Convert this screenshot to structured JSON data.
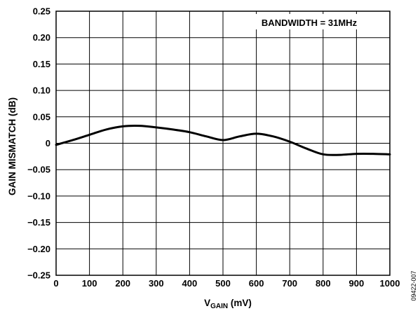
{
  "chart_data": {
    "type": "line",
    "title": "",
    "xlabel_main": "V",
    "xlabel_sub": "GAIN",
    "xlabel_unit": " (mV)",
    "ylabel": "GAIN MISMATCH (dB)",
    "annotation": "BANDWIDTH = 31MHz",
    "figure_id": "09422-007",
    "xlim": [
      0,
      1000
    ],
    "ylim": [
      -0.25,
      0.25
    ],
    "grid": true,
    "x_ticks": [
      0,
      100,
      200,
      300,
      400,
      500,
      600,
      700,
      800,
      900,
      1000
    ],
    "x_tick_labels": [
      "0",
      "100",
      "200",
      "300",
      "400",
      "500",
      "600",
      "700",
      "800",
      "900",
      "1000"
    ],
    "y_ticks": [
      0.25,
      0.2,
      0.15,
      0.1,
      0.05,
      0,
      -0.05,
      -0.1,
      -0.15,
      -0.2,
      -0.25
    ],
    "y_tick_labels": [
      "0.25",
      "0.20",
      "0.15",
      "0.10",
      "0.05",
      "0",
      "−0.05",
      "−0.10",
      "−0.15",
      "−0.20",
      "−0.25"
    ],
    "series": [
      {
        "x": [
          0,
          50,
          100,
          150,
          200,
          250,
          300,
          350,
          400,
          450,
          500,
          550,
          600,
          650,
          700,
          750,
          800,
          850,
          900,
          950,
          1000
        ],
        "y": [
          -0.003,
          0.006,
          0.016,
          0.026,
          0.032,
          0.033,
          0.03,
          0.026,
          0.021,
          0.013,
          0.006,
          0.013,
          0.018,
          0.013,
          0.003,
          -0.01,
          -0.021,
          -0.022,
          -0.02,
          -0.02,
          -0.021
        ],
        "color": "#000000"
      }
    ]
  }
}
